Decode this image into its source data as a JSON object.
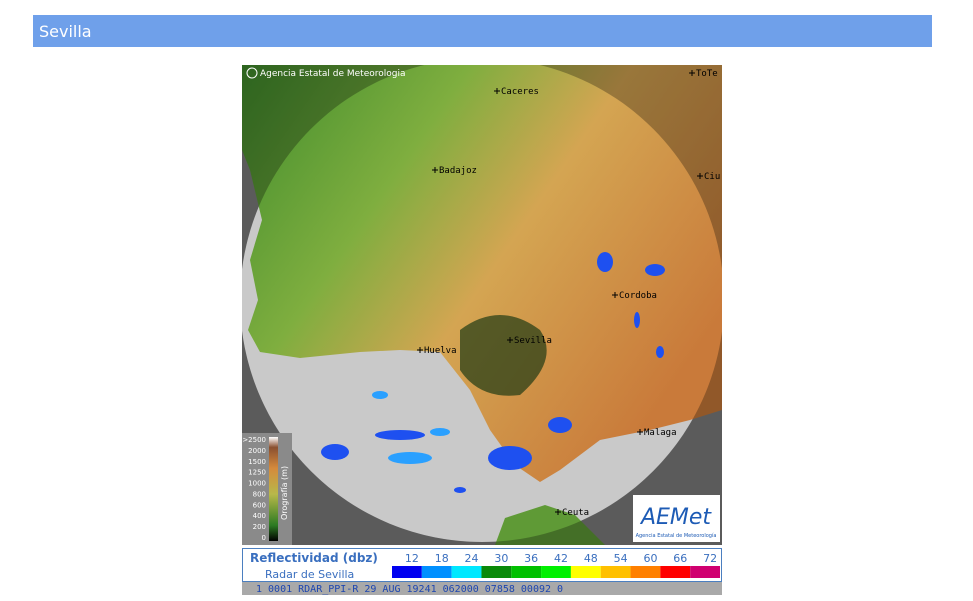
{
  "header": {
    "title": "Sevilla"
  },
  "radar": {
    "credit": "Agencia Estatal de Meteorologia",
    "cities": [
      "Caceres",
      "Badajoz",
      "Cordoba",
      "Huelva",
      "Sevilla",
      "Malaga",
      "Ceuta",
      "ToTe",
      "Ciu"
    ],
    "orography": {
      "title": "Orografía (m)",
      "labels": [
        ">2500",
        "2000",
        "1500",
        "1250",
        "1000",
        "800",
        "600",
        "400",
        "200",
        "0"
      ]
    },
    "logo": {
      "name": "AEMet",
      "subtitle": "Agencia Estatal de Meteorología"
    }
  },
  "legend": {
    "title": "Reflectividad (dbz)",
    "subtitle": "Radar de Sevilla",
    "levels": [
      12,
      18,
      24,
      30,
      36,
      42,
      48,
      54,
      60,
      66,
      72
    ]
  },
  "status_line": "1 0001 RDAR_PPI-R   29 AUG 19241 062000 07858 00092 0"
}
